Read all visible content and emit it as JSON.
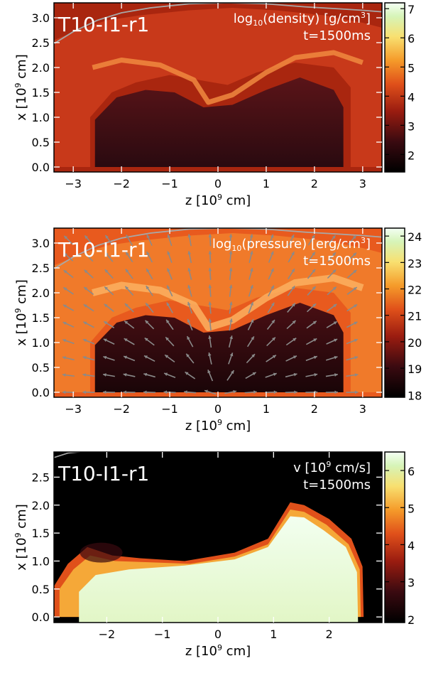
{
  "chart_data": [
    {
      "type": "heatmap",
      "panel_label": "T10-I1-r1",
      "quantity_label": "log10(density) [g/cm3]",
      "quantity_parts": {
        "pre": "log",
        "sub": "10",
        "mid": "(density)  [g/cm",
        "sup": "3",
        "post": "]"
      },
      "time_label": "t=1500ms",
      "xlabel_parts": {
        "pre": "z  [10",
        "sup": "9",
        "post": " cm]"
      },
      "ylabel_parts": {
        "pre": "x  [10",
        "sup": "9",
        "post": " cm]"
      },
      "xlim": [
        -3.4,
        3.4
      ],
      "ylim": [
        -0.1,
        3.3
      ],
      "xticks": [
        -3,
        -2,
        -1,
        0,
        1,
        2,
        3
      ],
      "yticks": [
        0.0,
        0.5,
        1.0,
        1.5,
        2.0,
        2.5,
        3.0
      ],
      "colorbar": {
        "min": 1.4,
        "max": 7.2,
        "ticks": [
          2,
          3,
          4,
          5,
          6,
          7
        ]
      },
      "vectors": false
    },
    {
      "type": "heatmap",
      "panel_label": "T10-I1-r1",
      "quantity_label": "log10(pressure) [erg/cm3]",
      "quantity_parts": {
        "pre": "log",
        "sub": "10",
        "mid": "(pressure)  [erg/cm",
        "sup": "3",
        "post": "]"
      },
      "time_label": "t=1500ms",
      "xlabel_parts": {
        "pre": "z  [10",
        "sup": "9",
        "post": " cm]"
      },
      "ylabel_parts": {
        "pre": "x  [10",
        "sup": "9",
        "post": " cm]"
      },
      "xlim": [
        -3.4,
        3.4
      ],
      "ylim": [
        -0.1,
        3.3
      ],
      "xticks": [
        -3,
        -2,
        -1,
        0,
        1,
        2,
        3
      ],
      "yticks": [
        0.0,
        0.5,
        1.0,
        1.5,
        2.0,
        2.5,
        3.0
      ],
      "colorbar": {
        "min": 17.9,
        "max": 24.3,
        "ticks": [
          18,
          19,
          20,
          21,
          22,
          23,
          24
        ]
      },
      "vectors": true
    },
    {
      "type": "heatmap",
      "panel_label": "T10-I1-r1",
      "quantity_label": "v [10^9 cm/s]",
      "quantity_parts": {
        "pre": "v  [10",
        "sup": "9",
        "post": " cm/s]"
      },
      "time_label": "t=1500ms",
      "xlabel_parts": {
        "pre": "z  [10",
        "sup": "9",
        "post": " cm]"
      },
      "ylabel_parts": {
        "pre": "x  [10",
        "sup": "9",
        "post": " cm]"
      },
      "xlim": [
        -2.95,
        2.95
      ],
      "ylim": [
        -0.1,
        2.95
      ],
      "xticks": [
        -2,
        -1,
        0,
        1,
        2
      ],
      "yticks": [
        0.0,
        0.5,
        1.0,
        1.5,
        2.0,
        2.5
      ],
      "colorbar": {
        "min": 1.9,
        "max": 6.5,
        "ticks": [
          2,
          3,
          4,
          5,
          6
        ]
      },
      "vectors": false
    }
  ]
}
